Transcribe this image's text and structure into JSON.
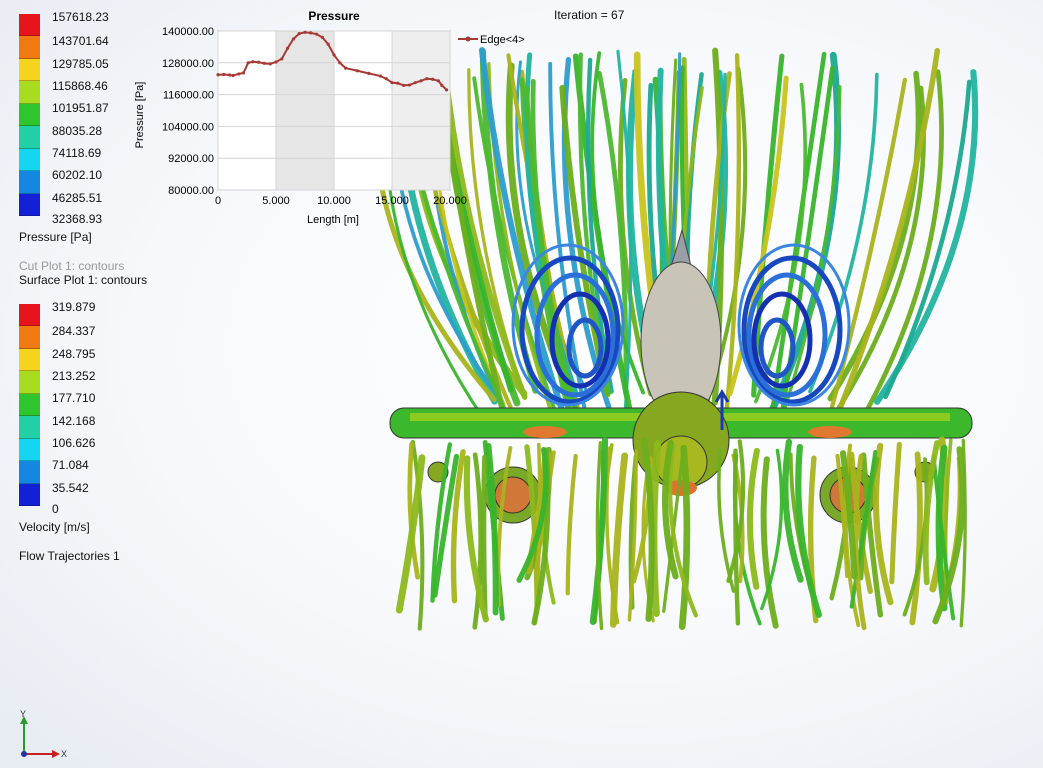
{
  "header": {
    "iteration_label": "Iteration = 67"
  },
  "pressure_legend": {
    "title": "Pressure [Pa]",
    "ticks": [
      "157618.23",
      "143701.64",
      "129785.05",
      "115868.46",
      "101951.87",
      "88035.28",
      "74118.69",
      "60202.10",
      "46285.51",
      "32368.93"
    ],
    "colors": [
      "#e8141b",
      "#f07a10",
      "#f4d41c",
      "#a8dc20",
      "#2ec62c",
      "#22d0a8",
      "#14d6f0",
      "#1488e0",
      "#1420d8"
    ]
  },
  "velocity_legend": {
    "title": "Velocity [m/s]",
    "ticks": [
      "319.879",
      "284.337",
      "248.795",
      "213.252",
      "177.710",
      "142.168",
      "106.626",
      "71.084",
      "35.542",
      "0"
    ],
    "colors": [
      "#e8141b",
      "#f07a10",
      "#f4d41c",
      "#a8dc20",
      "#2ec62c",
      "#22d0a8",
      "#14d6f0",
      "#1488e0",
      "#1420d8"
    ]
  },
  "feature_tree": {
    "cut_plot": "Cut Plot 1: contours",
    "surface_plot": "Surface Plot 1: contours",
    "flow_trajectories": "Flow Trajectories 1"
  },
  "triad": {
    "x_label": "X",
    "y_label": "Y"
  },
  "chart_data": {
    "type": "line",
    "title": "Pressure",
    "xlabel": "Length [m]",
    "ylabel": "Pressure [Pa]",
    "xlim": [
      0,
      20
    ],
    "ylim": [
      80000,
      140000
    ],
    "x_ticks": [
      "0",
      "5.000",
      "10.000",
      "15.000",
      "20.000"
    ],
    "y_ticks": [
      "80000.00",
      "92000.00",
      "104000.00",
      "116000.00",
      "128000.00",
      "140000.00"
    ],
    "legend_position": "top-right",
    "series": [
      {
        "name": "Edge<4>",
        "color": "#a83a36",
        "x": [
          0,
          0.5,
          1.0,
          1.3,
          1.8,
          2.2,
          2.6,
          3.0,
          3.5,
          4.0,
          4.5,
          5.0,
          5.5,
          6.0,
          6.5,
          7.0,
          7.5,
          8.0,
          8.5,
          9.0,
          9.5,
          10.0,
          10.5,
          11.0,
          12.0,
          13.0,
          14.0,
          14.5,
          15.0,
          15.5,
          16.0,
          16.5,
          17.0,
          17.5,
          18.0,
          18.5,
          19.0,
          19.3,
          19.7
        ],
        "values": [
          123500,
          123600,
          123400,
          123200,
          123800,
          124200,
          128000,
          128400,
          128200,
          127800,
          127600,
          128300,
          129500,
          133500,
          137000,
          139000,
          139500,
          139300,
          138800,
          137600,
          135000,
          131000,
          128000,
          126000,
          125000,
          124000,
          123000,
          122000,
          120500,
          120300,
          119500,
          119600,
          120500,
          121200,
          122000,
          121800,
          121200,
          119500,
          117800
        ]
      }
    ]
  }
}
